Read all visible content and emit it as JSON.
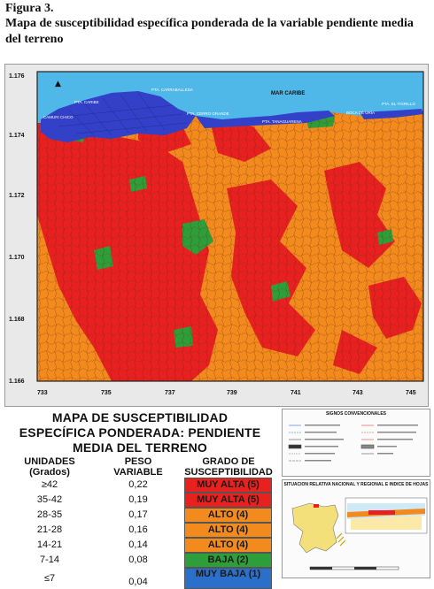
{
  "figure": {
    "label": "Figura 3.",
    "title": "Mapa de susceptibilidad específica ponderada de la variable pendiente media del terreno"
  },
  "map": {
    "y_ticks": [
      "1.176",
      "1.174",
      "1.172",
      "1.170",
      "1.168",
      "1.166"
    ],
    "x_ticks": [
      "733",
      "735",
      "737",
      "739",
      "741",
      "743",
      "745"
    ],
    "labels": {
      "carraballeda": "PTA. CARRABALLEDA",
      "caribe": "PTA. CARIBE",
      "cerro_grande": "PTA. CERRO GRANDE",
      "mar_caribe": "MAR CARIBE",
      "camuri_chico": "CAMURI CHICO",
      "boca_uria": "BOCA DE URÍA",
      "tanaguarena": "PTA. TANAGUARENA",
      "tigrillo": "PTA. EL TIGRILLO"
    },
    "colors": {
      "sea": "#4fb8e8",
      "urban": "#3340c8",
      "muy_alta": "#e82020",
      "alto": "#f28a1e",
      "baja": "#2e9e3a"
    }
  },
  "legend": {
    "title_lines": [
      "MAPA DE SUSCEPTIBILIDAD",
      "ESPECÍFICA PONDERADA: PENDIENTE",
      "MEDIA DEL TERRENO"
    ],
    "headers": {
      "units": "UNIDADES",
      "units_sub": "(Grados)",
      "weight": "PESO",
      "weight_sub": "VARIABLE",
      "grade": "GRADO DE",
      "grade_sub": "SUSCEPTIBILIDAD"
    },
    "rows": [
      {
        "range": "≥42",
        "weight": "0,22",
        "grade": "MUY ALTA (5)",
        "color": "#e8201e",
        "text_color": "#1a1a1a"
      },
      {
        "range": "35-42",
        "weight": "0,19",
        "grade": "MUY ALTA (5)",
        "color": "#e8201e",
        "text_color": "#1a1a1a"
      },
      {
        "range": "28-35",
        "weight": "0,17",
        "grade": "ALTO (4)",
        "color": "#f28a1e",
        "text_color": "#1a1a1a"
      },
      {
        "range": "21-28",
        "weight": "0,16",
        "grade": "ALTO (4)",
        "color": "#f28a1e",
        "text_color": "#1a1a1a"
      },
      {
        "range": "14-21",
        "weight": "0,14",
        "grade": "ALTO (4)",
        "color": "#f28a1e",
        "text_color": "#1a1a1a"
      },
      {
        "range": "7-14",
        "weight": "0,08",
        "grade": "BAJA (2)",
        "color": "#2e9e3a",
        "text_color": "#1a1a1a"
      },
      {
        "range": "≤7",
        "weight": "0,04",
        "grade": "MUY BAJA (1)",
        "color": "#2a6fc9",
        "text_color": "#1a1a1a"
      }
    ]
  },
  "signs": {
    "title": "SIGNOS CONVENCIONALES"
  },
  "location": {
    "title": "SITUACION RELATIVA NACIONAL Y REGIONAL E INDICE DE HOJAS"
  }
}
